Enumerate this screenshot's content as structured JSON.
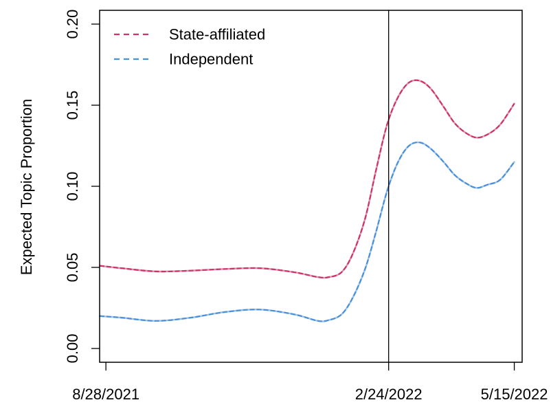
{
  "chart_data": {
    "type": "line",
    "title": "",
    "xlabel": "",
    "ylabel": "Expected Topic Proportion",
    "x_ticks": [
      {
        "date": "2021-08-28",
        "label": "8/28/2021"
      },
      {
        "date": "2022-02-24",
        "label": "2/24/2022"
      },
      {
        "date": "2022-05-15",
        "label": "5/15/2022"
      }
    ],
    "xlim": [
      "2021-08-24",
      "2022-05-20"
    ],
    "ylim": [
      -0.0085,
      0.2085
    ],
    "y_ticks": [
      {
        "value": 0.0,
        "label": "0.00"
      },
      {
        "value": 0.05,
        "label": "0.05"
      },
      {
        "value": 0.1,
        "label": "0.10"
      },
      {
        "value": 0.15,
        "label": "0.15"
      },
      {
        "value": 0.2,
        "label": "0.20"
      }
    ],
    "vertical_line": {
      "date": "2022-02-24"
    },
    "legend": {
      "position": "top-left",
      "entries": [
        "State-affiliated",
        "Independent"
      ]
    },
    "grid": false,
    "series": [
      {
        "name": "State-affiliated",
        "color": "#cc3366",
        "style": "dashed",
        "points": [
          [
            "2021-08-24",
            0.051
          ],
          [
            "2021-09-07",
            0.0495
          ],
          [
            "2021-09-29",
            0.0475
          ],
          [
            "2021-10-21",
            0.048
          ],
          [
            "2021-11-12",
            0.049
          ],
          [
            "2021-12-04",
            0.0495
          ],
          [
            "2021-12-26",
            0.047
          ],
          [
            "2022-01-10",
            0.044
          ],
          [
            "2022-01-17",
            0.044
          ],
          [
            "2022-01-25",
            0.047
          ],
          [
            "2022-02-01",
            0.058
          ],
          [
            "2022-02-09",
            0.08
          ],
          [
            "2022-02-16",
            0.11
          ],
          [
            "2022-02-23",
            0.138
          ],
          [
            "2022-03-02",
            0.155
          ],
          [
            "2022-03-09",
            0.164
          ],
          [
            "2022-03-16",
            0.165
          ],
          [
            "2022-03-23",
            0.16
          ],
          [
            "2022-03-31",
            0.149
          ],
          [
            "2022-04-07",
            0.139
          ],
          [
            "2022-04-14",
            0.133
          ],
          [
            "2022-04-21",
            0.13
          ],
          [
            "2022-04-28",
            0.132
          ],
          [
            "2022-05-06",
            0.138
          ],
          [
            "2022-05-15",
            0.151
          ]
        ]
      },
      {
        "name": "Independent",
        "color": "#4a90d9",
        "style": "dashed",
        "points": [
          [
            "2021-08-24",
            0.02
          ],
          [
            "2021-09-07",
            0.019
          ],
          [
            "2021-09-29",
            0.017
          ],
          [
            "2021-10-21",
            0.019
          ],
          [
            "2021-11-12",
            0.0225
          ],
          [
            "2021-12-04",
            0.024
          ],
          [
            "2021-12-26",
            0.021
          ],
          [
            "2022-01-10",
            0.017
          ],
          [
            "2022-01-17",
            0.0175
          ],
          [
            "2022-01-25",
            0.021
          ],
          [
            "2022-02-01",
            0.031
          ],
          [
            "2022-02-09",
            0.049
          ],
          [
            "2022-02-16",
            0.072
          ],
          [
            "2022-02-23",
            0.097
          ],
          [
            "2022-03-02",
            0.115
          ],
          [
            "2022-03-09",
            0.125
          ],
          [
            "2022-03-16",
            0.127
          ],
          [
            "2022-03-23",
            0.123
          ],
          [
            "2022-03-31",
            0.115
          ],
          [
            "2022-04-07",
            0.107
          ],
          [
            "2022-04-14",
            0.102
          ],
          [
            "2022-04-21",
            0.099
          ],
          [
            "2022-04-28",
            0.101
          ],
          [
            "2022-05-06",
            0.104
          ],
          [
            "2022-05-15",
            0.115
          ]
        ]
      }
    ]
  }
}
